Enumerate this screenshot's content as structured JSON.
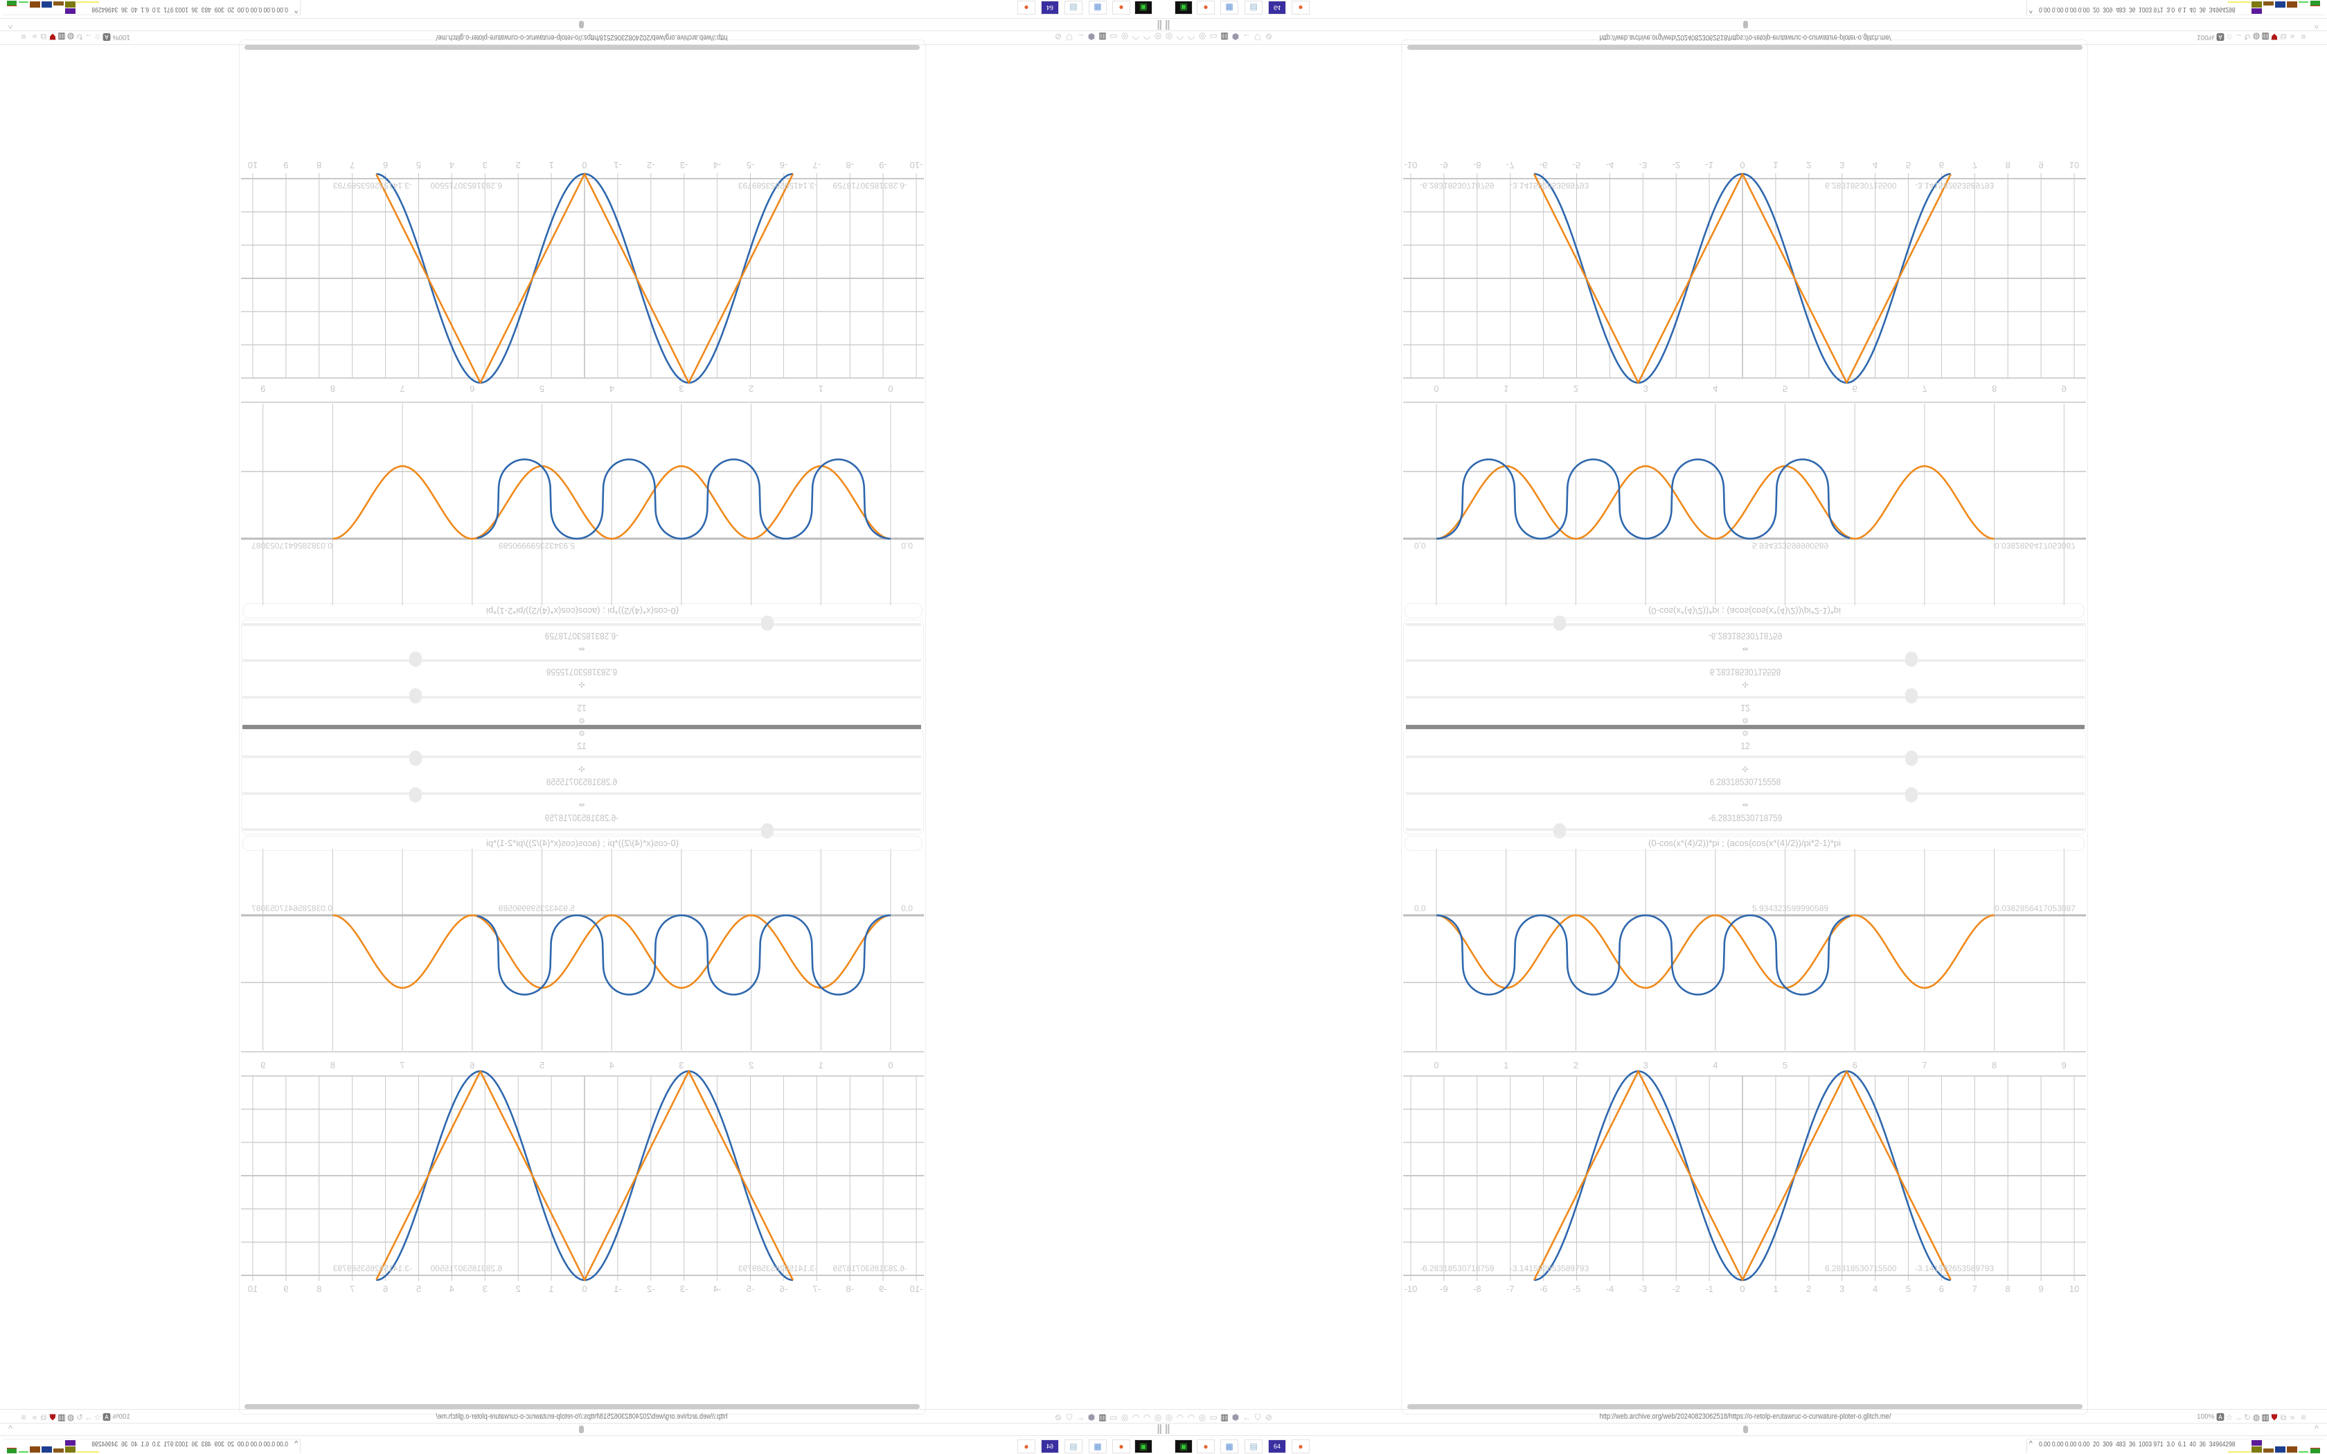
{
  "browser": {
    "url": "http://web.archive.org/web/20240823062518/https://o-retolp-erutawruc-o-curwature-ploter-o.glitch.me/",
    "zoom_label": "100%",
    "nav_icons": [
      "globe-icon",
      "arc-icon",
      "arc-icon",
      "globe-icon",
      "folder-icon",
      "trash-icon",
      "shield-badge-icon",
      "back-arrow-icon",
      "shield-icon",
      "lock-slash-icon"
    ],
    "toolbar_icons": [
      "translate-icon",
      "star-icon",
      "forward-icon",
      "reload-icon",
      "globe-icon",
      "trash-icon",
      "red-shield-icon",
      "puzzle-icon",
      "overflow-icon",
      "menu-icon"
    ]
  },
  "controls": {
    "sliders": [
      {
        "icon": "gear-icon",
        "value": "12",
        "level": 0.745
      },
      {
        "icon": "move-icon",
        "value": "6.28318530715558",
        "level": 0.745
      },
      {
        "icon": "resize-horizontal-icon",
        "value": "-6.28318530718759",
        "level": 0.227
      }
    ],
    "formula": "(0-cos(x*(4)/2))*pi ; (acos(cos(x*(4)/2))/pi*2-1)*pi"
  },
  "colors": {
    "series_blue": "#2e67ad",
    "series_orange": "#f0891a",
    "grid": "#c8c8c8"
  },
  "chart_data": [
    {
      "type": "line",
      "x_ticks": [
        "0",
        "1",
        "2",
        "3",
        "4",
        "5",
        "6",
        "7",
        "8",
        "9"
      ],
      "xlim": [
        0,
        9
      ],
      "point_labels": [
        "0,0",
        "5.934323599990589",
        "0.0382856417053087"
      ],
      "series": [
        {
          "color": "#2e67ad",
          "x_range": [
            0,
            5.93
          ],
          "period": 1.5,
          "min": -1.18
        },
        {
          "color": "#f0891a",
          "x_range": [
            0,
            8
          ],
          "period": 2,
          "min": -1.08
        }
      ]
    },
    {
      "type": "line",
      "x_ticks": [
        "-10",
        "-9",
        "-8",
        "-7",
        "-6",
        "-5",
        "-4",
        "-3",
        "-2",
        "-1",
        "0",
        "1",
        "2",
        "3",
        "4",
        "5",
        "6",
        "7",
        "8",
        "9",
        "10"
      ],
      "xlim": [
        -10,
        10
      ],
      "ylim": [
        -3,
        3
      ],
      "point_labels": [
        "-6.28318530718759",
        "-3.141592653589793",
        "6.28318530715500",
        "-3.141592653589793"
      ],
      "series": [
        {
          "color": "#2e67ad",
          "formula": "-pi*cos(x)",
          "x_range": [
            -6.2832,
            6.2832
          ]
        },
        {
          "color": "#f0891a",
          "formula": "(acos(cos(x))/pi*2-1)*pi",
          "x_range": [
            -6.2832,
            6.2832
          ]
        }
      ]
    }
  ],
  "taskbar": {
    "apps": [
      {
        "name": "terminal",
        "glyph": "▣",
        "color": "#1f6b2a"
      },
      {
        "name": "firefox",
        "glyph": "●",
        "color": "#e8622c"
      },
      {
        "name": "calculator",
        "glyph": "▦",
        "color": "#5b8fd6"
      },
      {
        "name": "notepad",
        "glyph": "▤",
        "color": "#8fb3c9"
      },
      {
        "name": "floppy",
        "glyph": "64",
        "color": "#3a2fa0"
      },
      {
        "name": "firefox",
        "glyph": "●",
        "color": "#e8622c"
      }
    ],
    "tray_text": "0.00 0.00 0.00 0.00  20  309  483  36  1003 971  3.0  6.1  40  36  34964298",
    "tray_caret": "^",
    "pause": "||"
  }
}
